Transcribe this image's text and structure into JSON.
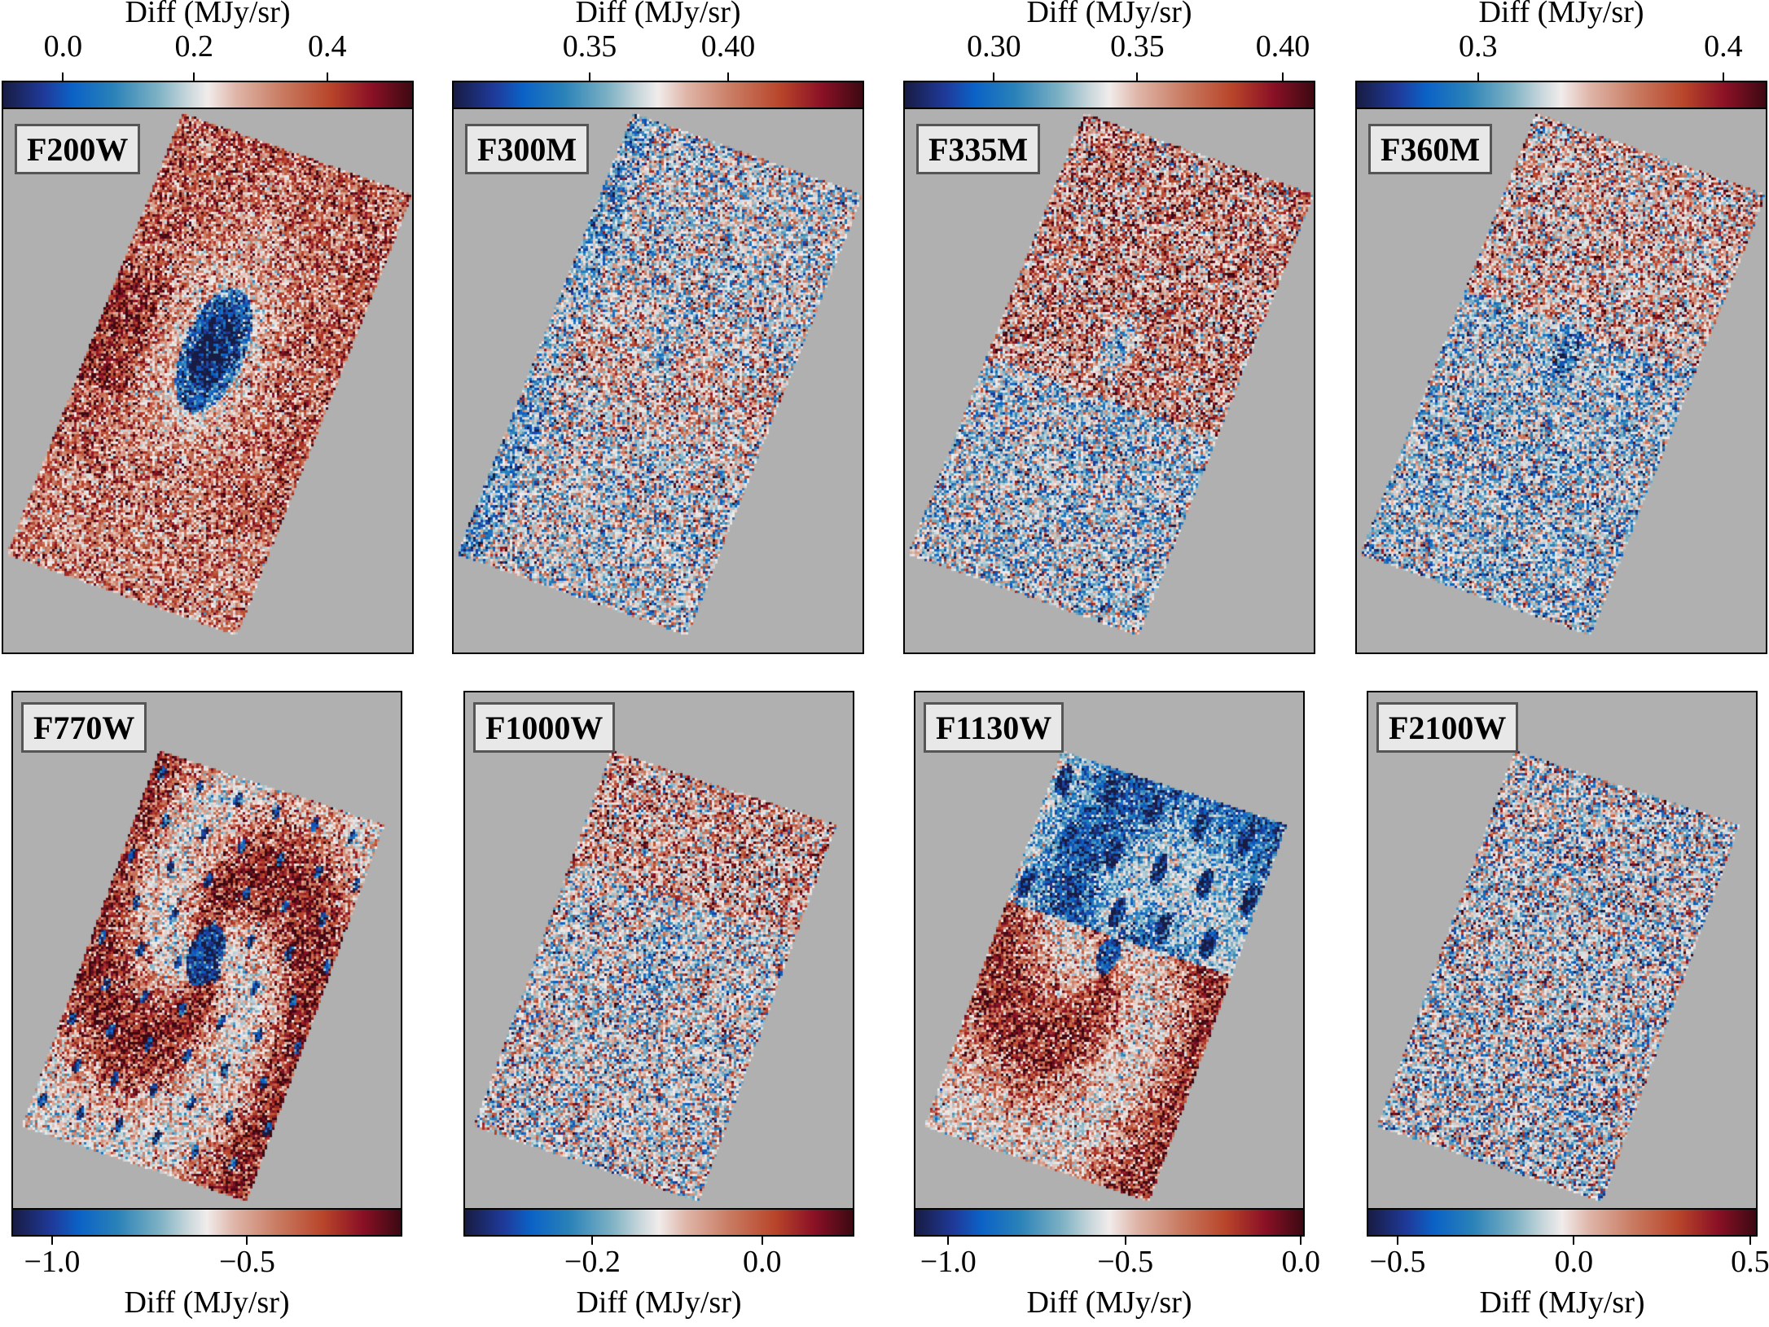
{
  "figure": {
    "colormap_stops": [
      "#181c43",
      "#1f3a9a",
      "#0b62c6",
      "#2a82b8",
      "#7fb2c4",
      "#c7d6db",
      "#f1eceb",
      "#dfb5a8",
      "#c97c63",
      "#b8452a",
      "#8b1126",
      "#3c0912"
    ],
    "background_color": "#b0b0b0"
  },
  "panels": [
    {
      "filter": "F200W",
      "row": 0,
      "cbar_label": "Diff (MJy/sr)",
      "ticks": [
        "0.0",
        "0.2",
        "0.4"
      ],
      "tick_pos": [
        0.149,
        0.467,
        0.79
      ],
      "vrange": [
        -0.093,
        0.532
      ]
    },
    {
      "filter": "F300M",
      "row": 0,
      "cbar_label": "Diff (MJy/sr)",
      "ticks": [
        "0.35",
        "0.40"
      ],
      "tick_pos": [
        0.334,
        0.67
      ],
      "vrange": [
        0.3003,
        0.4494
      ]
    },
    {
      "filter": "F335M",
      "row": 0,
      "cbar_label": "Diff (MJy/sr)",
      "ticks": [
        "0.30",
        "0.35",
        "0.40"
      ],
      "tick_pos": [
        0.22,
        0.568,
        0.921
      ],
      "vrange": [
        0.2684,
        0.4121
      ]
    },
    {
      "filter": "F360M",
      "row": 0,
      "cbar_label": "Diff (MJy/sr)",
      "ticks": [
        "0.3",
        "0.4"
      ],
      "tick_pos": [
        0.298,
        0.893
      ],
      "vrange": [
        0.2499,
        0.418
      ]
    },
    {
      "filter": "F770W",
      "row": 1,
      "cbar_label": "Diff (MJy/sr)",
      "ticks": [
        "−1.0",
        "−0.5"
      ],
      "tick_pos": [
        0.104,
        0.603
      ],
      "vrange": [
        -1.104,
        -0.101
      ]
    },
    {
      "filter": "F1000W",
      "row": 1,
      "cbar_label": "Diff (MJy/sr)",
      "ticks": [
        "−0.2",
        "0.0"
      ],
      "tick_pos": [
        0.33,
        0.764
      ],
      "vrange": [
        -0.352,
        0.109
      ]
    },
    {
      "filter": "F1130W",
      "row": 1,
      "cbar_label": "Diff (MJy/sr)",
      "ticks": [
        "−1.0",
        "−0.5",
        "0.0"
      ],
      "tick_pos": [
        0.088,
        0.541,
        0.99
      ],
      "vrange": [
        -1.097,
        0.011
      ]
    },
    {
      "filter": "F2100W",
      "row": 1,
      "cbar_label": "Diff (MJy/sr)",
      "ticks": [
        "−0.5",
        "0.0",
        "0.5"
      ],
      "tick_pos": [
        0.079,
        0.53,
        0.981
      ],
      "vrange": [
        -0.588,
        0.52
      ]
    }
  ],
  "chart_data": {
    "type": "heatmap",
    "title": "",
    "layout": {
      "rows": 2,
      "cols": 4,
      "colorbar_position_top_row": "top",
      "colorbar_position_bottom_row": "bottom",
      "grid": false
    },
    "colorbar_label": "Diff (MJy/sr)",
    "series": [
      {
        "name": "F200W",
        "colorbar_ticks": [
          0.0,
          0.2,
          0.4
        ],
        "clim": [
          -0.09,
          0.53
        ],
        "description": "mostly positive (red) difference with strong negative (dark blue) core at galaxy center"
      },
      {
        "name": "F300M",
        "colorbar_ticks": [
          0.35,
          0.4
        ],
        "clim": [
          0.3,
          0.45
        ],
        "description": "noisy mix, slight negative at center, red band through middle"
      },
      {
        "name": "F335M",
        "colorbar_ticks": [
          0.3,
          0.35,
          0.4
        ],
        "clim": [
          0.27,
          0.41
        ],
        "description": "noisy mix, negative center, red upper region, blue lower region"
      },
      {
        "name": "F360M",
        "colorbar_ticks": [
          0.3,
          0.4
        ],
        "clim": [
          0.25,
          0.42
        ],
        "description": "noisy mix, red upper region, bluish lower half"
      },
      {
        "name": "F770W",
        "colorbar_ticks": [
          -1.0,
          -0.5
        ],
        "clim": [
          -1.1,
          -0.1
        ],
        "description": "spiral structure, red arms with blue compact regions and blue nucleus"
      },
      {
        "name": "F1000W",
        "colorbar_ticks": [
          -0.2,
          0.0
        ],
        "clim": [
          -0.35,
          0.11
        ],
        "description": "noisy, reddish top, faint blue center"
      },
      {
        "name": "F1130W",
        "colorbar_ticks": [
          -1.0,
          -0.5,
          0.0
        ],
        "clim": [
          -1.1,
          0.01
        ],
        "description": "spiral, blue upper region, red lower region"
      },
      {
        "name": "F2100W",
        "colorbar_ticks": [
          -0.5,
          0.0,
          0.5
        ],
        "clim": [
          -0.59,
          0.52
        ],
        "description": "mostly noise with scattered dark-red point sources"
      }
    ]
  }
}
